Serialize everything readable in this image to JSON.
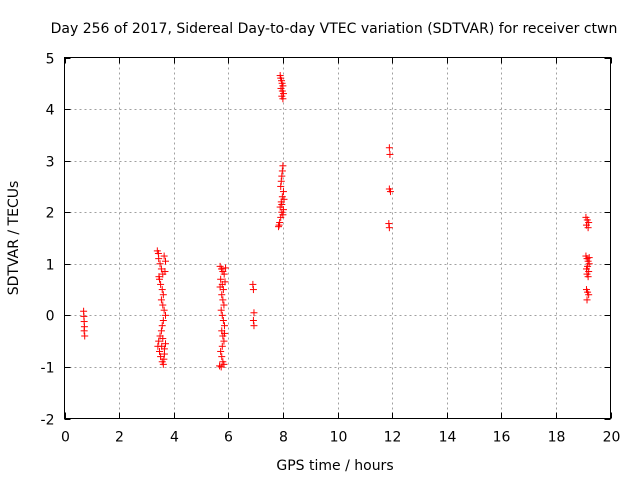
{
  "chart_data": {
    "type": "scatter",
    "title": "Day 256 of 2017, Sidereal Day-to-day VTEC variation (SDTVAR) for receiver ctwn",
    "xlabel": "GPS time / hours",
    "ylabel": "SDTVAR / TECUs",
    "xlim": [
      0,
      20
    ],
    "ylim": [
      -2,
      5
    ],
    "x_ticks": [
      0,
      2,
      4,
      6,
      8,
      10,
      12,
      14,
      16,
      18,
      20
    ],
    "y_ticks": [
      -2,
      -1,
      0,
      1,
      2,
      3,
      4,
      5
    ],
    "x_tick_labels": [
      "0",
      "2",
      "4",
      "6",
      "8",
      "10",
      "12",
      "14",
      "16",
      "18",
      "20"
    ],
    "y_tick_labels": [
      "-2",
      "-1",
      "0",
      "1",
      "2",
      "3",
      "4",
      "5"
    ],
    "grid": true,
    "marker": "+",
    "marker_color": "#ff0000",
    "series": [
      {
        "name": "ctwn",
        "points": [
          [
            0.7,
            0.08
          ],
          [
            0.71,
            -0.02
          ],
          [
            0.72,
            -0.12
          ],
          [
            0.73,
            -0.22
          ],
          [
            0.74,
            -0.4
          ],
          [
            0.72,
            -0.3
          ],
          [
            3.4,
            1.25
          ],
          [
            3.45,
            1.1
          ],
          [
            3.5,
            1.0
          ],
          [
            3.55,
            0.9
          ],
          [
            3.6,
            0.8
          ],
          [
            3.48,
            0.7
          ],
          [
            3.52,
            0.6
          ],
          [
            3.58,
            0.5
          ],
          [
            3.62,
            0.4
          ],
          [
            3.65,
            1.15
          ],
          [
            3.7,
            1.05
          ],
          [
            3.68,
            0.85
          ],
          [
            3.55,
            0.3
          ],
          [
            3.6,
            0.2
          ],
          [
            3.65,
            0.1
          ],
          [
            3.7,
            0.0
          ],
          [
            3.62,
            -0.1
          ],
          [
            3.58,
            -0.2
          ],
          [
            3.55,
            -0.3
          ],
          [
            3.5,
            -0.4
          ],
          [
            3.45,
            -0.5
          ],
          [
            3.42,
            -0.6
          ],
          [
            3.48,
            -0.7
          ],
          [
            3.52,
            -0.8
          ],
          [
            3.58,
            -0.9
          ],
          [
            3.62,
            -0.95
          ],
          [
            3.66,
            -0.75
          ],
          [
            3.7,
            -0.55
          ],
          [
            3.66,
            -0.65
          ],
          [
            3.44,
            1.2
          ],
          [
            3.46,
            0.75
          ],
          [
            3.64,
            -0.85
          ],
          [
            3.56,
            -0.6
          ],
          [
            3.6,
            -0.45
          ],
          [
            5.7,
            0.95
          ],
          [
            5.75,
            0.9
          ],
          [
            5.8,
            0.85
          ],
          [
            5.85,
            0.8
          ],
          [
            5.72,
            0.7
          ],
          [
            5.78,
            0.6
          ],
          [
            5.82,
            0.5
          ],
          [
            5.76,
            0.4
          ],
          [
            5.8,
            0.3
          ],
          [
            5.84,
            0.2
          ],
          [
            5.74,
            0.1
          ],
          [
            5.78,
            0.0
          ],
          [
            5.82,
            -0.1
          ],
          [
            5.86,
            -0.2
          ],
          [
            5.76,
            -0.3
          ],
          [
            5.8,
            -0.4
          ],
          [
            5.84,
            -0.5
          ],
          [
            5.78,
            -0.6
          ],
          [
            5.72,
            -0.7
          ],
          [
            5.76,
            -0.8
          ],
          [
            5.8,
            -0.9
          ],
          [
            5.84,
            -0.95
          ],
          [
            5.74,
            -1.0
          ],
          [
            5.88,
            0.65
          ],
          [
            5.86,
            -0.35
          ],
          [
            5.7,
            0.55
          ],
          [
            5.9,
            0.92
          ],
          [
            5.68,
            -0.98
          ],
          [
            6.9,
            0.6
          ],
          [
            6.92,
            0.5
          ],
          [
            6.94,
            0.05
          ],
          [
            6.92,
            -0.1
          ],
          [
            6.94,
            -0.2
          ],
          [
            7.9,
            4.65
          ],
          [
            7.92,
            4.6
          ],
          [
            7.95,
            4.55
          ],
          [
            7.97,
            4.5
          ],
          [
            8.0,
            4.45
          ],
          [
            7.93,
            4.4
          ],
          [
            7.98,
            4.35
          ],
          [
            8.02,
            4.3
          ],
          [
            7.96,
            4.25
          ],
          [
            8.0,
            4.2
          ],
          [
            8.0,
            2.9
          ],
          [
            7.98,
            2.8
          ],
          [
            7.96,
            2.7
          ],
          [
            7.94,
            2.6
          ],
          [
            7.92,
            2.5
          ],
          [
            8.02,
            2.4
          ],
          [
            7.98,
            2.3
          ],
          [
            7.94,
            2.2
          ],
          [
            7.9,
            2.1
          ],
          [
            7.96,
            2.0
          ],
          [
            8.0,
            1.95
          ],
          [
            7.92,
            1.9
          ],
          [
            7.88,
            1.8
          ],
          [
            7.86,
            1.75
          ],
          [
            7.84,
            1.72
          ],
          [
            8.04,
            2.25
          ],
          [
            8.02,
            2.05
          ],
          [
            7.96,
            2.15
          ],
          [
            11.9,
            3.25
          ],
          [
            11.92,
            3.12
          ],
          [
            11.9,
            2.45
          ],
          [
            11.94,
            2.4
          ],
          [
            11.88,
            1.78
          ],
          [
            11.9,
            1.7
          ],
          [
            19.1,
            1.9
          ],
          [
            19.15,
            1.85
          ],
          [
            19.2,
            1.8
          ],
          [
            19.12,
            1.75
          ],
          [
            19.18,
            1.7
          ],
          [
            19.1,
            1.15
          ],
          [
            19.14,
            1.1
          ],
          [
            19.18,
            1.05
          ],
          [
            19.22,
            1.0
          ],
          [
            19.16,
            0.95
          ],
          [
            19.12,
            0.9
          ],
          [
            19.2,
            0.85
          ],
          [
            19.14,
            0.8
          ],
          [
            19.18,
            0.75
          ],
          [
            19.22,
            1.12
          ],
          [
            19.12,
            0.5
          ],
          [
            19.16,
            0.45
          ],
          [
            19.2,
            0.4
          ],
          [
            19.14,
            0.3
          ]
        ]
      }
    ]
  }
}
